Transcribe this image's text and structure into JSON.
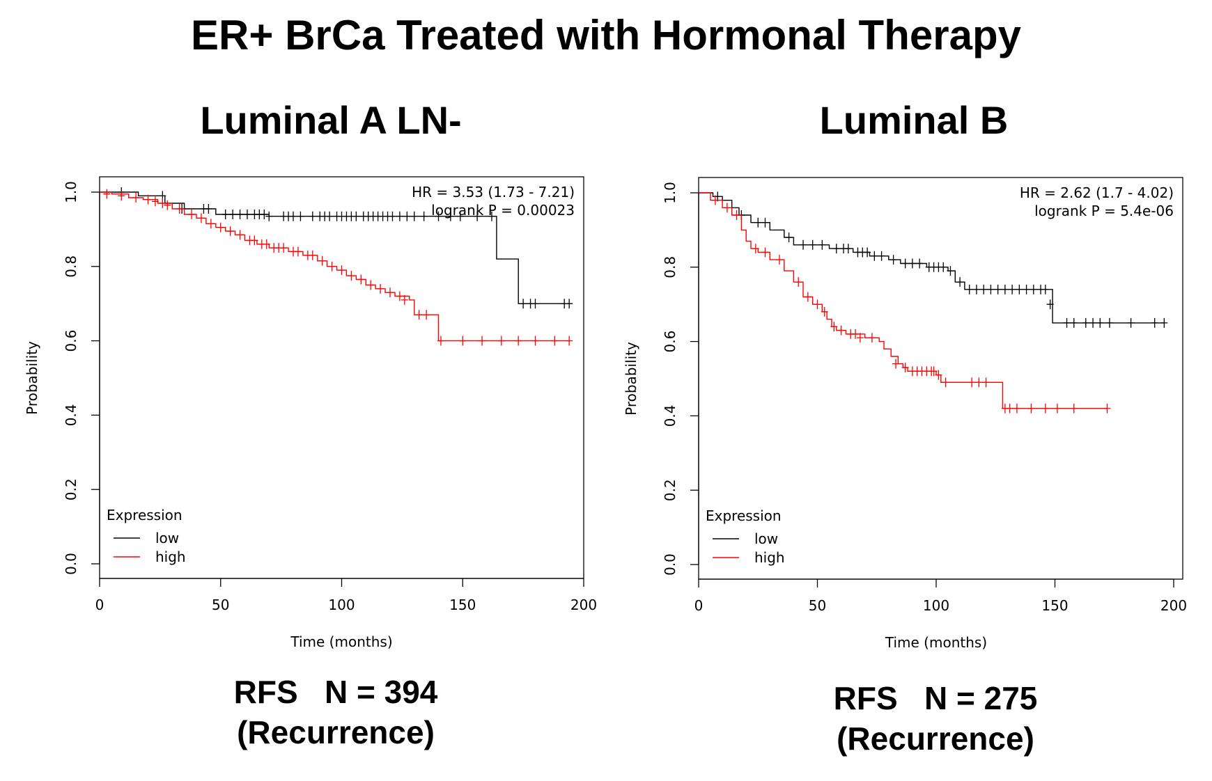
{
  "figure": {
    "title": "ER+ BrCa Treated with Hormonal Therapy"
  },
  "panels": [
    {
      "title": "Luminal A LN-",
      "footer_line1": "RFS   N = 394",
      "footer_line2": "(Recurrence)"
    },
    {
      "title": "Luminal B",
      "footer_line1": "RFS   N = 275",
      "footer_line2": "(Recurrence)"
    }
  ],
  "chart_data": [
    {
      "type": "line",
      "title": "",
      "xlabel": "Time (months)",
      "ylabel": "Probability",
      "xlim": [
        0,
        200
      ],
      "ylim": [
        0,
        1
      ],
      "x_ticks": [
        "0",
        "50",
        "100",
        "150",
        "200"
      ],
      "y_ticks": [
        "0.0",
        "0.2",
        "0.4",
        "0.6",
        "0.8",
        "1.0"
      ],
      "legend": {
        "title": "Expression",
        "position": "bottom-left"
      },
      "annotations": [
        "HR = 3.53 (1.73 - 7.21)",
        "logrank P = 0.00023"
      ],
      "series": [
        {
          "name": "low",
          "color": "#000000",
          "steps": [
            [
              0,
              1.0
            ],
            [
              16,
              0.99
            ],
            [
              27,
              0.97
            ],
            [
              35,
              0.955
            ],
            [
              48,
              0.94
            ],
            [
              70,
              0.935
            ],
            [
              164,
              0.82
            ],
            [
              173,
              0.7
            ],
            [
              194,
              0.7
            ]
          ],
          "censored": [
            [
              9,
              1.0
            ],
            [
              26,
              0.99
            ],
            [
              34,
              0.955
            ],
            [
              43,
              0.955
            ],
            [
              45,
              0.955
            ],
            [
              52,
              0.94
            ],
            [
              55,
              0.94
            ],
            [
              58,
              0.94
            ],
            [
              61,
              0.94
            ],
            [
              64,
              0.94
            ],
            [
              66,
              0.94
            ],
            [
              68,
              0.94
            ],
            [
              70,
              0.935
            ],
            [
              76,
              0.935
            ],
            [
              78,
              0.935
            ],
            [
              80,
              0.935
            ],
            [
              83,
              0.935
            ],
            [
              88,
              0.935
            ],
            [
              91,
              0.935
            ],
            [
              93,
              0.935
            ],
            [
              95,
              0.935
            ],
            [
              98,
              0.935
            ],
            [
              100,
              0.935
            ],
            [
              102,
              0.935
            ],
            [
              104,
              0.935
            ],
            [
              106,
              0.935
            ],
            [
              109,
              0.935
            ],
            [
              111,
              0.935
            ],
            [
              113,
              0.935
            ],
            [
              115,
              0.935
            ],
            [
              117,
              0.935
            ],
            [
              119,
              0.935
            ],
            [
              121,
              0.935
            ],
            [
              124,
              0.935
            ],
            [
              127,
              0.935
            ],
            [
              130,
              0.935
            ],
            [
              134,
              0.935
            ],
            [
              140,
              0.935
            ],
            [
              145,
              0.935
            ],
            [
              149,
              0.935
            ],
            [
              156,
              0.935
            ],
            [
              162,
              0.935
            ],
            [
              175,
              0.7
            ],
            [
              178,
              0.7
            ],
            [
              180,
              0.7
            ],
            [
              192,
              0.7
            ],
            [
              194,
              0.7
            ]
          ]
        },
        {
          "name": "high",
          "color": "#ff0000",
          "steps": [
            [
              0,
              1.0
            ],
            [
              5,
              0.995
            ],
            [
              12,
              0.985
            ],
            [
              18,
              0.98
            ],
            [
              24,
              0.97
            ],
            [
              30,
              0.955
            ],
            [
              35,
              0.94
            ],
            [
              40,
              0.93
            ],
            [
              44,
              0.915
            ],
            [
              48,
              0.905
            ],
            [
              52,
              0.895
            ],
            [
              56,
              0.885
            ],
            [
              60,
              0.87
            ],
            [
              65,
              0.86
            ],
            [
              70,
              0.85
            ],
            [
              78,
              0.84
            ],
            [
              84,
              0.83
            ],
            [
              90,
              0.815
            ],
            [
              94,
              0.8
            ],
            [
              98,
              0.79
            ],
            [
              102,
              0.775
            ],
            [
              106,
              0.765
            ],
            [
              110,
              0.75
            ],
            [
              114,
              0.74
            ],
            [
              118,
              0.73
            ],
            [
              122,
              0.72
            ],
            [
              128,
              0.71
            ],
            [
              130,
              0.67
            ],
            [
              140,
              0.6
            ],
            [
              194,
              0.6
            ]
          ],
          "censored": [
            [
              3,
              0.995
            ],
            [
              9,
              0.99
            ],
            [
              15,
              0.985
            ],
            [
              20,
              0.98
            ],
            [
              23,
              0.975
            ],
            [
              26,
              0.97
            ],
            [
              28,
              0.965
            ],
            [
              33,
              0.955
            ],
            [
              38,
              0.94
            ],
            [
              42,
              0.93
            ],
            [
              46,
              0.915
            ],
            [
              50,
              0.905
            ],
            [
              54,
              0.895
            ],
            [
              58,
              0.885
            ],
            [
              62,
              0.87
            ],
            [
              64,
              0.87
            ],
            [
              67,
              0.86
            ],
            [
              69,
              0.86
            ],
            [
              72,
              0.85
            ],
            [
              74,
              0.85
            ],
            [
              76,
              0.85
            ],
            [
              80,
              0.84
            ],
            [
              82,
              0.84
            ],
            [
              86,
              0.83
            ],
            [
              88,
              0.83
            ],
            [
              92,
              0.815
            ],
            [
              96,
              0.8
            ],
            [
              100,
              0.79
            ],
            [
              104,
              0.775
            ],
            [
              108,
              0.765
            ],
            [
              112,
              0.75
            ],
            [
              116,
              0.74
            ],
            [
              120,
              0.73
            ],
            [
              124,
              0.72
            ],
            [
              126,
              0.71
            ],
            [
              132,
              0.67
            ],
            [
              135,
              0.67
            ],
            [
              141,
              0.6
            ],
            [
              150,
              0.6
            ],
            [
              158,
              0.6
            ],
            [
              166,
              0.6
            ],
            [
              173,
              0.6
            ],
            [
              180,
              0.6
            ],
            [
              188,
              0.6
            ],
            [
              194,
              0.6
            ]
          ]
        }
      ]
    },
    {
      "type": "line",
      "title": "",
      "xlabel": "Time (months)",
      "ylabel": "Probability",
      "xlim": [
        0,
        200
      ],
      "ylim": [
        0,
        1
      ],
      "x_ticks": [
        "0",
        "50",
        "100",
        "150",
        "200"
      ],
      "y_ticks": [
        "0.0",
        "0.2",
        "0.4",
        "0.6",
        "0.8",
        "1.0"
      ],
      "legend": {
        "title": "Expression",
        "position": "bottom-left"
      },
      "annotations": [
        "HR = 2.62 (1.7 - 4.02)",
        "logrank P = 5.4e-06"
      ],
      "series": [
        {
          "name": "low",
          "color": "#000000",
          "steps": [
            [
              0,
              1.0
            ],
            [
              6,
              0.99
            ],
            [
              10,
              0.98
            ],
            [
              14,
              0.96
            ],
            [
              17,
              0.94
            ],
            [
              22,
              0.92
            ],
            [
              30,
              0.9
            ],
            [
              36,
              0.88
            ],
            [
              40,
              0.86
            ],
            [
              55,
              0.85
            ],
            [
              65,
              0.84
            ],
            [
              72,
              0.83
            ],
            [
              80,
              0.82
            ],
            [
              85,
              0.81
            ],
            [
              96,
              0.8
            ],
            [
              105,
              0.79
            ],
            [
              108,
              0.76
            ],
            [
              112,
              0.74
            ],
            [
              147,
              0.74
            ],
            [
              149,
              0.65
            ],
            [
              196,
              0.65
            ]
          ],
          "censored": [
            [
              8,
              0.99
            ],
            [
              18,
              0.94
            ],
            [
              25,
              0.92
            ],
            [
              28,
              0.92
            ],
            [
              38,
              0.88
            ],
            [
              44,
              0.86
            ],
            [
              48,
              0.86
            ],
            [
              52,
              0.86
            ],
            [
              58,
              0.85
            ],
            [
              61,
              0.85
            ],
            [
              63,
              0.85
            ],
            [
              67,
              0.84
            ],
            [
              69,
              0.84
            ],
            [
              71,
              0.84
            ],
            [
              74,
              0.83
            ],
            [
              77,
              0.83
            ],
            [
              82,
              0.82
            ],
            [
              87,
              0.81
            ],
            [
              90,
              0.81
            ],
            [
              93,
              0.81
            ],
            [
              97,
              0.8
            ],
            [
              99,
              0.8
            ],
            [
              101,
              0.8
            ],
            [
              103,
              0.8
            ],
            [
              106,
              0.79
            ],
            [
              110,
              0.76
            ],
            [
              114,
              0.74
            ],
            [
              117,
              0.74
            ],
            [
              120,
              0.74
            ],
            [
              123,
              0.74
            ],
            [
              126,
              0.74
            ],
            [
              129,
              0.74
            ],
            [
              132,
              0.74
            ],
            [
              135,
              0.74
            ],
            [
              138,
              0.74
            ],
            [
              141,
              0.74
            ],
            [
              144,
              0.74
            ],
            [
              146,
              0.74
            ],
            [
              148,
              0.7
            ],
            [
              155,
              0.65
            ],
            [
              158,
              0.65
            ],
            [
              163,
              0.65
            ],
            [
              166,
              0.65
            ],
            [
              169,
              0.65
            ],
            [
              173,
              0.65
            ],
            [
              182,
              0.65
            ],
            [
              192,
              0.65
            ],
            [
              196,
              0.65
            ]
          ]
        },
        {
          "name": "high",
          "color": "#ff0000",
          "steps": [
            [
              0,
              1.0
            ],
            [
              5,
              0.98
            ],
            [
              10,
              0.96
            ],
            [
              14,
              0.94
            ],
            [
              18,
              0.9
            ],
            [
              20,
              0.87
            ],
            [
              22,
              0.85
            ],
            [
              25,
              0.84
            ],
            [
              30,
              0.82
            ],
            [
              36,
              0.79
            ],
            [
              40,
              0.76
            ],
            [
              44,
              0.72
            ],
            [
              48,
              0.7
            ],
            [
              52,
              0.68
            ],
            [
              54,
              0.66
            ],
            [
              56,
              0.64
            ],
            [
              58,
              0.63
            ],
            [
              62,
              0.62
            ],
            [
              70,
              0.61
            ],
            [
              76,
              0.6
            ],
            [
              78,
              0.58
            ],
            [
              81,
              0.56
            ],
            [
              84,
              0.54
            ],
            [
              86,
              0.53
            ],
            [
              88,
              0.52
            ],
            [
              100,
              0.51
            ],
            [
              102,
              0.49
            ],
            [
              127,
              0.49
            ],
            [
              128,
              0.42
            ],
            [
              172,
              0.42
            ]
          ],
          "censored": [
            [
              7,
              0.98
            ],
            [
              12,
              0.96
            ],
            [
              16,
              0.94
            ],
            [
              24,
              0.85
            ],
            [
              28,
              0.84
            ],
            [
              34,
              0.82
            ],
            [
              42,
              0.76
            ],
            [
              46,
              0.72
            ],
            [
              50,
              0.7
            ],
            [
              53,
              0.68
            ],
            [
              57,
              0.64
            ],
            [
              60,
              0.63
            ],
            [
              64,
              0.62
            ],
            [
              66,
              0.62
            ],
            [
              68,
              0.61
            ],
            [
              73,
              0.61
            ],
            [
              83,
              0.54
            ],
            [
              87,
              0.53
            ],
            [
              90,
              0.52
            ],
            [
              92,
              0.52
            ],
            [
              94,
              0.52
            ],
            [
              96,
              0.52
            ],
            [
              98,
              0.52
            ],
            [
              99,
              0.52
            ],
            [
              101,
              0.51
            ],
            [
              104,
              0.49
            ],
            [
              115,
              0.49
            ],
            [
              118,
              0.49
            ],
            [
              121,
              0.49
            ],
            [
              129,
              0.42
            ],
            [
              131,
              0.42
            ],
            [
              134,
              0.42
            ],
            [
              140,
              0.42
            ],
            [
              146,
              0.42
            ],
            [
              151,
              0.42
            ],
            [
              158,
              0.42
            ],
            [
              172,
              0.42
            ]
          ]
        }
      ]
    }
  ]
}
